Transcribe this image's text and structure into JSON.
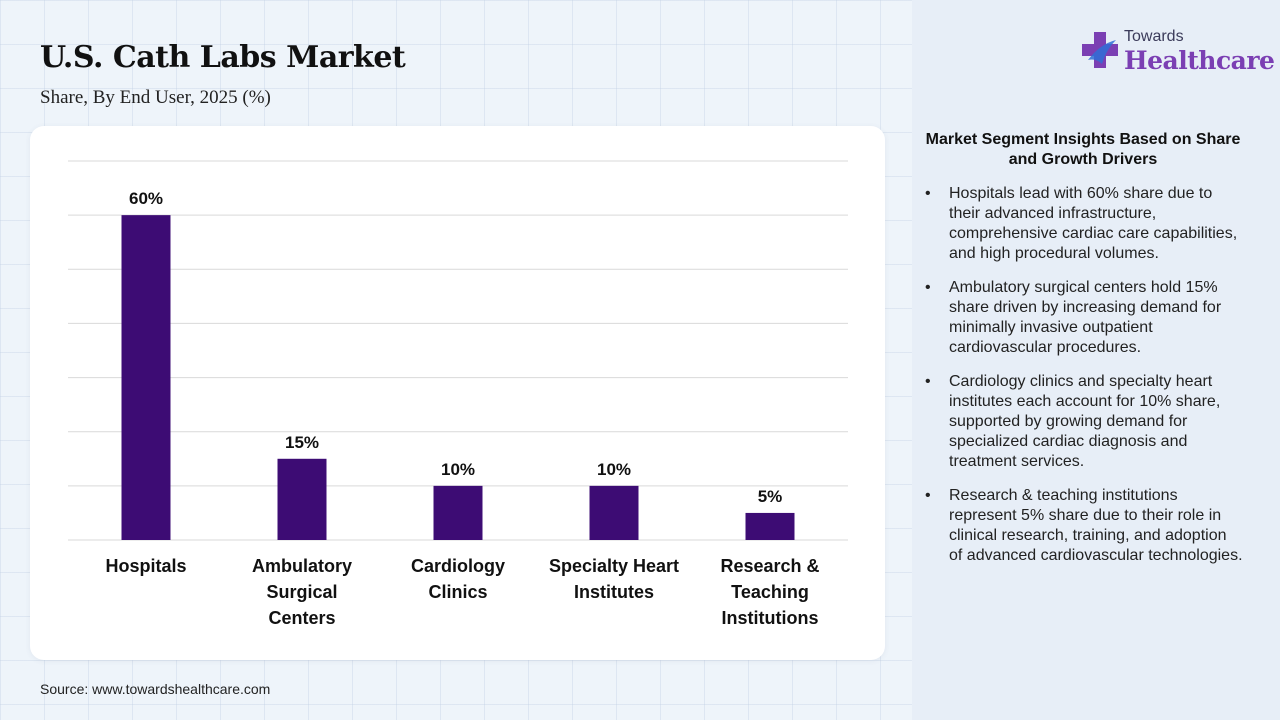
{
  "header": {
    "title": "U.S. Cath Labs Market",
    "subtitle": "Share, By End User, 2025 (%)"
  },
  "logo": {
    "top_text": "Towards",
    "main_text": "Healthcare",
    "icon": "medical-cross-icon"
  },
  "colors": {
    "bar": "#3d0c74",
    "logo_purple": "#7b3fb3",
    "logo_blue": "#2f6fd6"
  },
  "chart_data": {
    "type": "bar",
    "categories": [
      "Hospitals",
      "Ambulatory Surgical Centers",
      "Cardiology Clinics",
      "Specialty Heart Institutes",
      "Research & Teaching Institutions"
    ],
    "category_lines": [
      [
        "Hospitals"
      ],
      [
        "Ambulatory",
        "Surgical",
        "Centers"
      ],
      [
        "Cardiology",
        "Clinics"
      ],
      [
        "Specialty Heart",
        "Institutes"
      ],
      [
        "Research &",
        "Teaching",
        "Institutions"
      ]
    ],
    "values": [
      60,
      15,
      10,
      10,
      5
    ],
    "data_labels": [
      "60%",
      "15%",
      "10%",
      "10%",
      "5%"
    ],
    "ylim": [
      0,
      70
    ],
    "grid": true,
    "legend": "none"
  },
  "insights": {
    "title": "Market Segment Insights Based on Share and Growth Drivers",
    "items": [
      "Hospitals lead with 60% share due to their advanced infrastructure, comprehensive cardiac care capabilities, and high procedural volumes.",
      "Ambulatory surgical centers hold 15% share driven by increasing demand for minimally invasive outpatient cardiovascular procedures.",
      "Cardiology clinics and specialty heart institutes each account for 10% share, supported by growing demand for specialized cardiac diagnosis and treatment services.",
      "Research & teaching institutions represent 5% share due to their role in clinical research, training, and adoption of advanced cardiovascular technologies."
    ]
  },
  "source": "Source: www.towardshealthcare.com"
}
